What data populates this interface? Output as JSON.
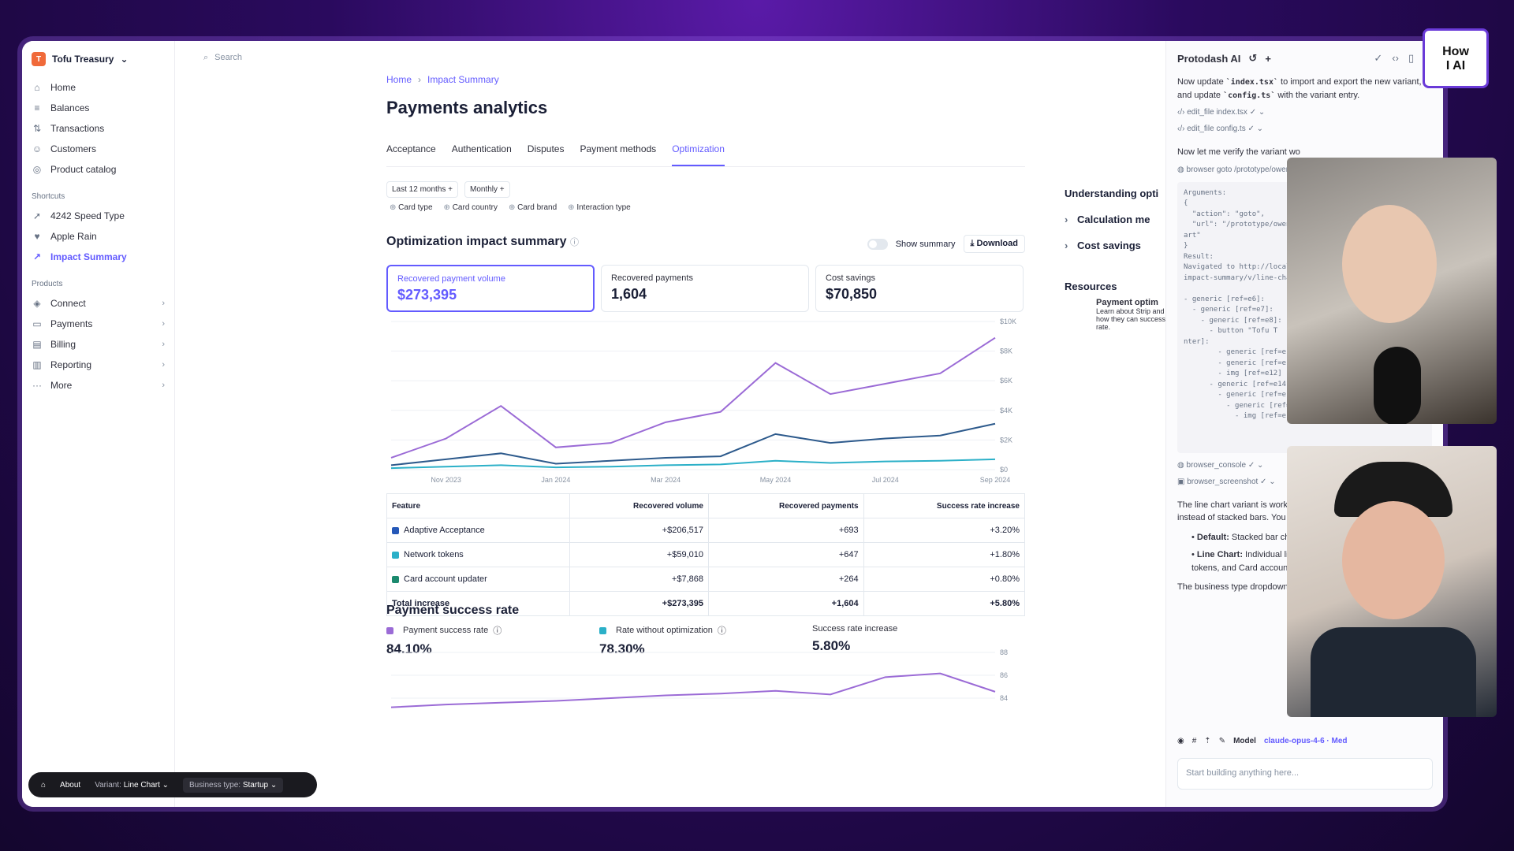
{
  "sidebar": {
    "account": "Tofu Treasury",
    "items": [
      {
        "label": "Home",
        "icon": "home-icon"
      },
      {
        "label": "Balances",
        "icon": "balances-icon"
      },
      {
        "label": "Transactions",
        "icon": "transactions-icon"
      },
      {
        "label": "Customers",
        "icon": "customers-icon"
      },
      {
        "label": "Product catalog",
        "icon": "catalog-icon"
      }
    ],
    "shortcuts_label": "Shortcuts",
    "shortcuts": [
      {
        "label": "4242 Speed Type"
      },
      {
        "label": "Apple Rain"
      },
      {
        "label": "Impact Summary"
      }
    ],
    "products_label": "Products",
    "products": [
      {
        "label": "Connect"
      },
      {
        "label": "Payments"
      },
      {
        "label": "Billing"
      },
      {
        "label": "Reporting"
      },
      {
        "label": "More"
      }
    ]
  },
  "search": {
    "placeholder": "Search"
  },
  "breadcrumb": {
    "home": "Home",
    "current": "Impact Summary"
  },
  "page_title": "Payments analytics",
  "tabs": [
    "Acceptance",
    "Authentication",
    "Disputes",
    "Payment methods",
    "Optimization"
  ],
  "filters": {
    "period": "Last 12 months",
    "interval": "Monthly",
    "dims": [
      "Card type",
      "Card country",
      "Card brand",
      "Interaction type"
    ]
  },
  "summary": {
    "title": "Optimization impact summary",
    "show_summary": "Show summary",
    "download": "Download",
    "cards": [
      {
        "label": "Recovered payment volume",
        "value": "$273,395"
      },
      {
        "label": "Recovered payments",
        "value": "1,604"
      },
      {
        "label": "Cost savings",
        "value": "$70,850"
      }
    ]
  },
  "chart_data": [
    {
      "type": "line",
      "x": [
        "Oct 2023",
        "Nov 2023",
        "Dec 2023",
        "Jan 2024",
        "Feb 2024",
        "Mar 2024",
        "Apr 2024",
        "May 2024",
        "Jun 2024",
        "Jul 2024",
        "Aug 2024",
        "Sep 2024"
      ],
      "xticks": [
        "Nov 2023",
        "Jan 2024",
        "Mar 2024",
        "May 2024",
        "Jul 2024",
        "Sep 2024"
      ],
      "yticks": [
        "$0",
        "$2K",
        "$4K",
        "$6K",
        "$8K",
        "$10K"
      ],
      "ylim": [
        0,
        10000
      ],
      "series": [
        {
          "color": "#9b6bd6",
          "values": [
            800,
            2100,
            4300,
            1500,
            1800,
            3200,
            3900,
            7200,
            5100,
            5800,
            6500,
            8900
          ]
        },
        {
          "color": "#2d5a8c",
          "values": [
            300,
            700,
            1100,
            400,
            600,
            800,
            900,
            2400,
            1800,
            2100,
            2300,
            3100
          ]
        },
        {
          "color": "#2bb0c8",
          "values": [
            100,
            200,
            300,
            150,
            200,
            300,
            350,
            600,
            450,
            550,
            600,
            700
          ]
        }
      ]
    },
    {
      "type": "line",
      "x": [
        "Oct 2023",
        "Nov 2023",
        "Dec 2023",
        "Jan 2024",
        "Feb 2024",
        "Mar 2024",
        "Apr 2024",
        "May 2024",
        "Jun 2024",
        "Jul 2024",
        "Aug 2024",
        "Sep 2024"
      ],
      "yticks": [
        "84",
        "86",
        "88"
      ],
      "ylim": [
        83.5,
        88.5
      ],
      "series": [
        {
          "color": "#9b6bd6",
          "values": [
            82.5,
            82.8,
            83.0,
            83.2,
            83.5,
            83.8,
            84.0,
            84.3,
            83.9,
            85.8,
            86.2,
            84.2
          ]
        }
      ]
    }
  ],
  "table": {
    "headers": [
      "Feature",
      "Recovered volume",
      "Recovered payments",
      "Success rate increase"
    ],
    "rows": [
      {
        "color": "#2558b8",
        "feature": "Adaptive Acceptance",
        "volume": "+$206,517",
        "payments": "+693",
        "rate": "+3.20%"
      },
      {
        "color": "#2bb0c8",
        "feature": "Network tokens",
        "volume": "+$59,010",
        "payments": "+647",
        "rate": "+1.80%"
      },
      {
        "color": "#1c8a6e",
        "feature": "Card account updater",
        "volume": "+$7,868",
        "payments": "+264",
        "rate": "+0.80%"
      }
    ],
    "total": {
      "feature": "Total increase",
      "volume": "+$273,395",
      "payments": "+1,604",
      "rate": "+5.80%"
    }
  },
  "success_rate": {
    "title": "Payment success rate",
    "items": [
      {
        "label": "Payment success rate",
        "value": "84.10%",
        "color": "#9b6bd6"
      },
      {
        "label": "Rate without optimization",
        "value": "78.30%",
        "color": "#2bb0c8"
      },
      {
        "label": "Success rate increase",
        "value": "5.80%"
      }
    ]
  },
  "understanding": {
    "title": "Understanding opti",
    "items": [
      "Calculation me",
      "Cost savings"
    ]
  },
  "resources": {
    "title": "Resources",
    "card_title": "Payment optim",
    "card_text": "Learn about Strip and how they can success rate."
  },
  "ai": {
    "title": "Protodash AI",
    "msg1_a": "Now update ",
    "msg1_file1": "`index.tsx`",
    "msg1_b": " to import and export the new variant, and update ",
    "msg1_file2": "`config.ts`",
    "msg1_c": " with the variant entry.",
    "tool1": "edit_file index.tsx ✓",
    "tool2": "edit_file config.ts ✓",
    "msg2": "Now let me verify the variant wo",
    "tool3": "browser goto /prototype/owen",
    "code": "Arguments:\n{\n  \"action\": \"goto\",\n  \"url\": \"/prototype/owen\nart\"\n}\nResult:\nNavigated to http://local\nimpact-summary/v/line-cha\n\n- generic [ref=e6]:\n  - generic [ref=e7]:\n    - generic [ref=e8]:\n      - button \"Tofu T\nnter]:\n        - generic [ref=e1\n        - generic [ref=e1\n        - img [ref=e12]\n      - generic [ref=e14]:\n        - generic [ref=e1\n          - generic [ref=\n            - img [ref=e1",
    "tool4": "browser_console ✓",
    "tool5": "browser_screenshot ✓",
    "msg3": "The line chart variant is working impact chart now shows three s instead of stacked bars. You ca variant bar at the bottom of the",
    "bullet1_b": "Default:",
    "bullet1": " Stacked bar chart",
    "bullet2_b": "Line Chart:",
    "bullet2": " Individual lines compare trends between A tokens, and Card account u",
    "msg4": "The business type dropdown co",
    "model_label": "Model",
    "model": "claude-opus-4-6 · Med",
    "input_placeholder": "Start building anything here..."
  },
  "toolbar": {
    "about": "About",
    "variant_label": "Variant:",
    "variant": "Line Chart",
    "business_label": "Business type:",
    "business": "Startup"
  },
  "badge": {
    "line1": "How",
    "line2": "I AI"
  }
}
